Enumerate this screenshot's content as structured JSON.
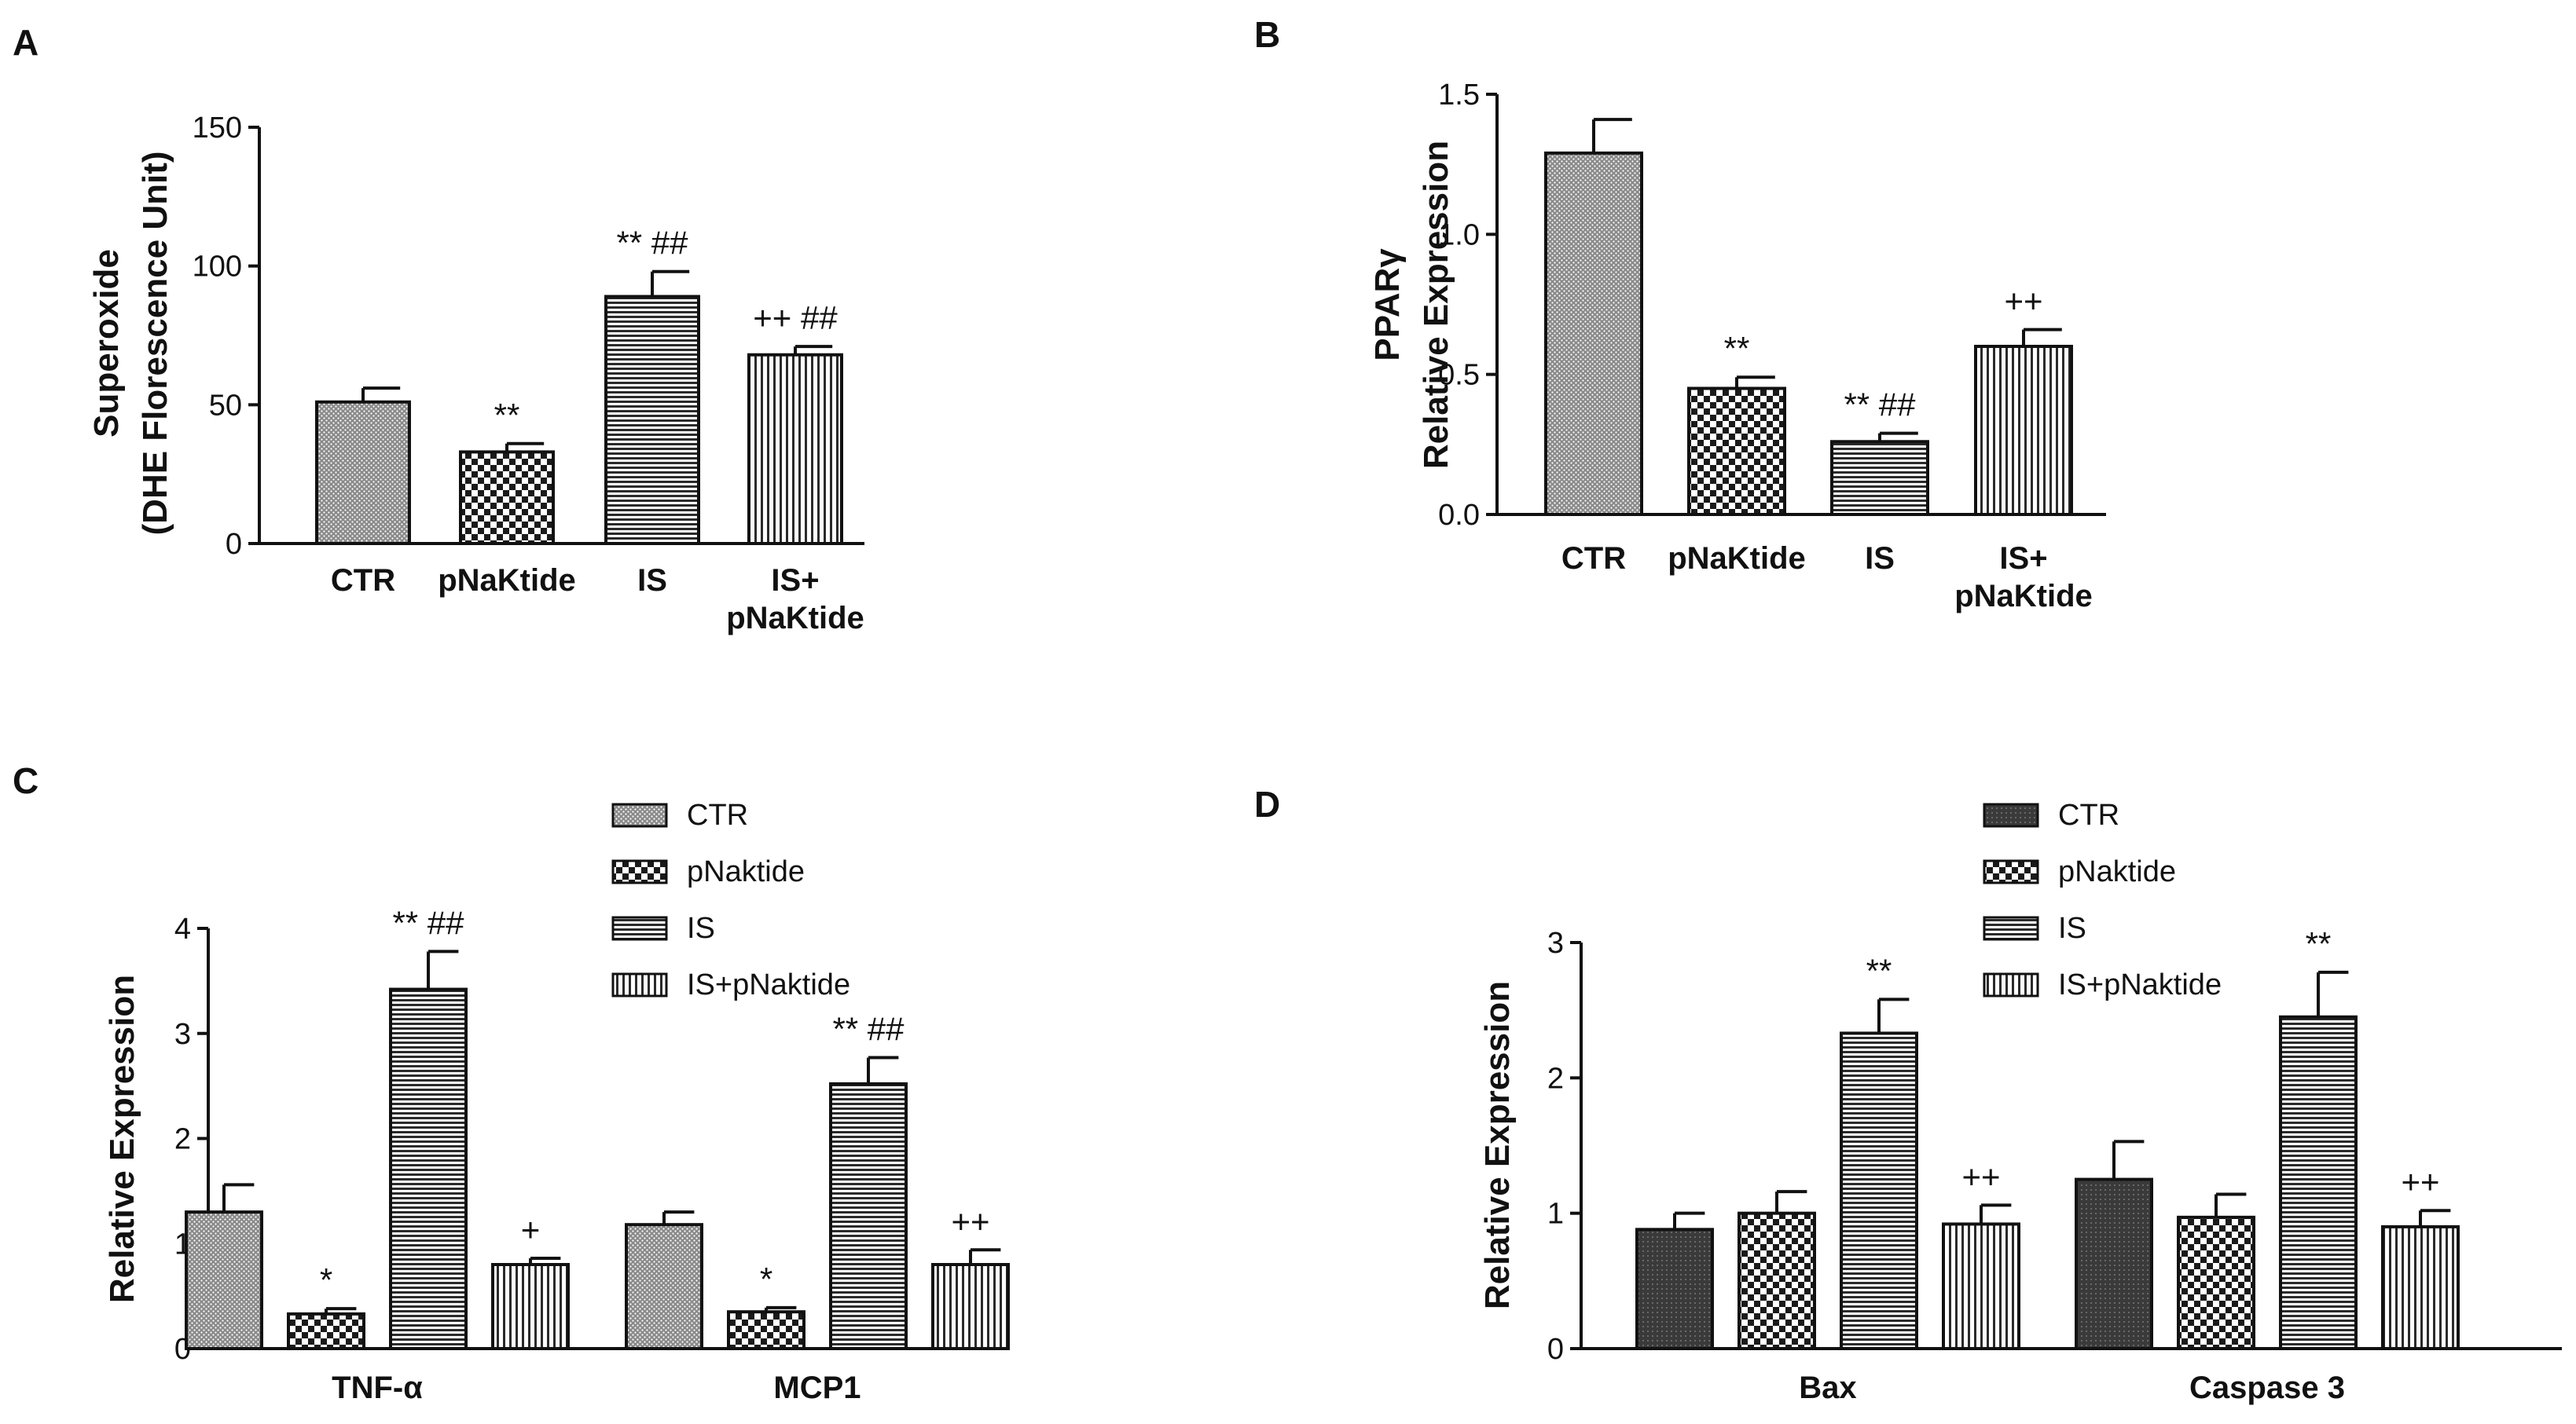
{
  "figure": {
    "palette": {
      "axis": "#111111",
      "bar_stroke": "#111111",
      "bg": "#ffffff"
    }
  },
  "chart_data": [
    {
      "panel": "A",
      "type": "bar",
      "categories": [
        "CTR",
        "pNaKtide",
        "IS",
        "IS+ pNaKtide"
      ],
      "category_lines": [
        [
          "CTR"
        ],
        [
          "pNaKtide"
        ],
        [
          "IS"
        ],
        [
          "IS+",
          "pNaKtide"
        ]
      ],
      "values": [
        51,
        33,
        89,
        68
      ],
      "errors": [
        5,
        3,
        9,
        3
      ],
      "patterns": [
        "dots",
        "check",
        "hlines",
        "vlines"
      ],
      "significance": [
        "",
        "**",
        "** ##",
        "++ ##"
      ],
      "ylabel_lines": [
        "Superoxide",
        "(DHE Florescence Unit)"
      ],
      "ylim": [
        0,
        150
      ],
      "yticks": [
        0,
        50,
        100,
        150
      ],
      "ytick_labels": [
        "0",
        "50",
        "100",
        "150"
      ]
    },
    {
      "panel": "B",
      "type": "bar",
      "categories": [
        "CTR",
        "pNaKtide",
        "IS",
        "IS+ pNaKtide"
      ],
      "category_lines": [
        [
          "CTR"
        ],
        [
          "pNaKtide"
        ],
        [
          "IS"
        ],
        [
          "IS+",
          "pNaKtide"
        ]
      ],
      "values": [
        1.29,
        0.45,
        0.26,
        0.6
      ],
      "errors": [
        0.12,
        0.04,
        0.03,
        0.06
      ],
      "patterns": [
        "dots",
        "check",
        "hlines",
        "vlines"
      ],
      "significance": [
        "",
        "**",
        "** ##",
        "++"
      ],
      "ylabel_lines": [
        "PPARγ",
        "Relative Expression"
      ],
      "ylim": [
        0,
        1.5
      ],
      "yticks": [
        0,
        0.5,
        1.0,
        1.5
      ],
      "ytick_labels": [
        "0.0",
        "0.5",
        "1.0",
        "1.5"
      ]
    },
    {
      "panel": "C",
      "type": "bar",
      "categories": [
        "TNF-α",
        "MCP1"
      ],
      "series": [
        {
          "name": "CTR",
          "pattern": "dots",
          "values": [
            1.3,
            1.18
          ],
          "errors": [
            0.26,
            0.12
          ],
          "significance": [
            "",
            ""
          ]
        },
        {
          "name": "pNaktide",
          "pattern": "check",
          "values": [
            0.33,
            0.35
          ],
          "errors": [
            0.05,
            0.04
          ],
          "significance": [
            "*",
            "*"
          ]
        },
        {
          "name": "IS",
          "pattern": "hlines",
          "values": [
            3.42,
            2.52
          ],
          "errors": [
            0.36,
            0.25
          ],
          "significance": [
            "** ##",
            "** ##"
          ]
        },
        {
          "name": "IS+pNaktide",
          "pattern": "vlines",
          "values": [
            0.8,
            0.8
          ],
          "errors": [
            0.06,
            0.14
          ],
          "significance": [
            "+",
            "++"
          ]
        }
      ],
      "ylabel_lines": [
        "Relative Expression"
      ],
      "ylim": [
        0,
        4
      ],
      "yticks": [
        0,
        1,
        2,
        3,
        4
      ],
      "ytick_labels": [
        "0",
        "1",
        "2",
        "3",
        "4"
      ],
      "legend": "top-center"
    },
    {
      "panel": "D",
      "type": "bar",
      "categories": [
        "Bax",
        "Caspase 3"
      ],
      "series": [
        {
          "name": "CTR",
          "pattern": "dark",
          "values": [
            0.88,
            1.25
          ],
          "errors": [
            0.12,
            0.28
          ],
          "significance": [
            "",
            ""
          ]
        },
        {
          "name": "pNaktide",
          "pattern": "check",
          "values": [
            1.0,
            0.97
          ],
          "errors": [
            0.16,
            0.17
          ],
          "significance": [
            "",
            ""
          ]
        },
        {
          "name": "IS",
          "pattern": "hlines",
          "values": [
            2.33,
            2.45
          ],
          "errors": [
            0.25,
            0.33
          ],
          "significance": [
            "**",
            "**"
          ]
        },
        {
          "name": "IS+pNaktide",
          "pattern": "vlines",
          "values": [
            0.92,
            0.9
          ],
          "errors": [
            0.14,
            0.12
          ],
          "significance": [
            "++",
            "++"
          ]
        }
      ],
      "ylabel_lines": [
        "Relative Expression"
      ],
      "ylim": [
        0,
        3
      ],
      "yticks": [
        0,
        1,
        2,
        3
      ],
      "ytick_labels": [
        "0",
        "1",
        "2",
        "3"
      ],
      "legend": "top-center"
    }
  ]
}
